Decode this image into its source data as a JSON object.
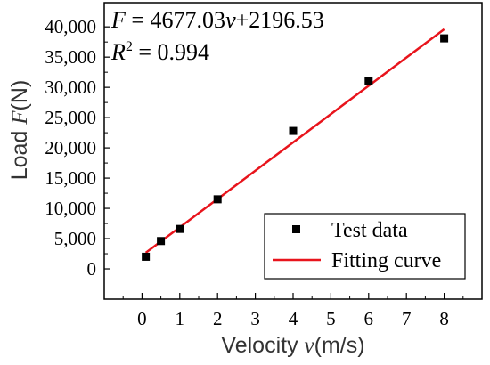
{
  "chart_data": {
    "type": "scatter",
    "title": "",
    "equation": {
      "lhs": "F",
      "eq": " = 4677.03",
      "var": "v",
      "rest": "+2196.53"
    },
    "r2": {
      "symbol": "R",
      "sup": "2",
      "value": " = 0.994"
    },
    "xlabel": {
      "prefix": "Velocity ",
      "var": "v",
      "suffix": "(m/s)"
    },
    "ylabel": {
      "prefix": "Load ",
      "var": "F",
      "suffix": "(N)"
    },
    "xlim": [
      -1,
      9
    ],
    "ylim": [
      -5000,
      44000
    ],
    "xticks": [
      0,
      1,
      2,
      3,
      4,
      5,
      6,
      7,
      8
    ],
    "xtick_labels": [
      "0",
      "1",
      "2",
      "3",
      "4",
      "5",
      "6",
      "7",
      "8"
    ],
    "yticks": [
      0,
      5000,
      10000,
      15000,
      20000,
      25000,
      30000,
      35000,
      40000
    ],
    "ytick_labels": [
      "0",
      "5,000",
      "10,000",
      "15,000",
      "20,000",
      "25,000",
      "30,000",
      "35,000",
      "40,000"
    ],
    "grid": false,
    "legend_position": "bottom-right",
    "series": [
      {
        "name": "Test data",
        "kind": "points",
        "color": "#000000",
        "x": [
          0.1,
          0.5,
          1,
          2,
          4,
          6,
          8
        ],
        "y": [
          2000,
          4600,
          6600,
          11500,
          22800,
          31100,
          38100
        ]
      },
      {
        "name": "Fitting curve",
        "kind": "line",
        "color": "#e8141c",
        "slope": 4677.03,
        "intercept": 2196.53,
        "x_range": [
          0.1,
          8
        ]
      }
    ]
  }
}
